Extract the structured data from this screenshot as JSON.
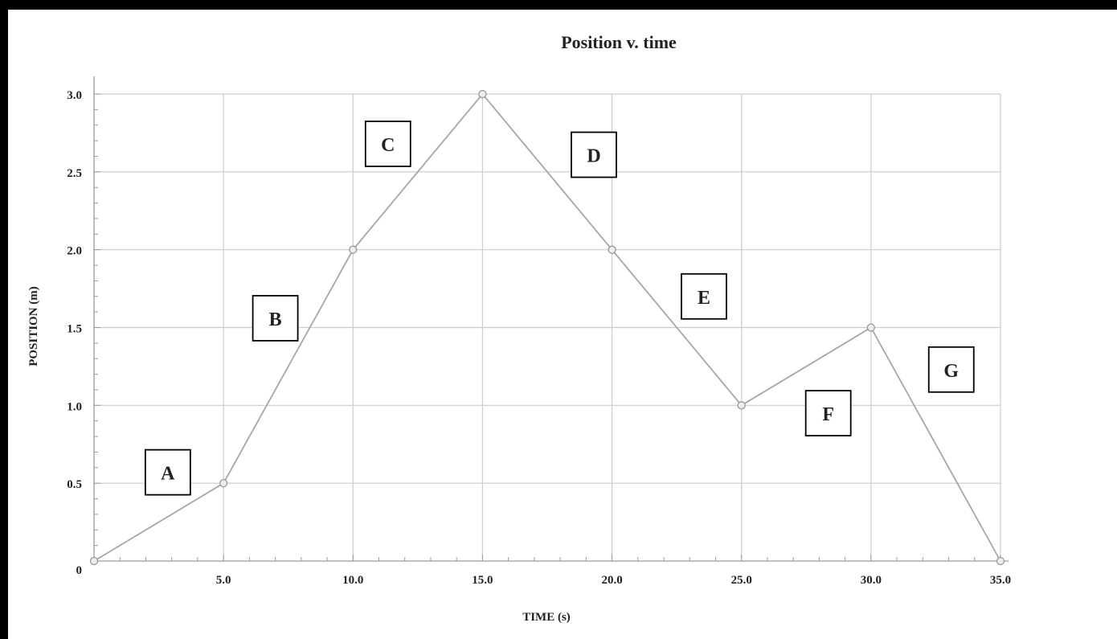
{
  "chart_data": {
    "type": "line",
    "title": "Position v. time",
    "xlabel": "TIME (s)",
    "ylabel": "POSITION (m)",
    "xlim": [
      0,
      35
    ],
    "ylim": [
      0,
      3
    ],
    "x_ticks": [
      5,
      10,
      15,
      20,
      25,
      30,
      35
    ],
    "x_tick_labels": [
      "5.0",
      "10.0",
      "15.0",
      "20.0",
      "25.0",
      "30.0",
      "35.0"
    ],
    "y_ticks": [
      0,
      0.5,
      1,
      1.5,
      2,
      2.5,
      3
    ],
    "y_tick_labels": [
      "0",
      "0.5",
      "1.0",
      "1.5",
      "2.0",
      "2.5",
      "3.0"
    ],
    "grid": true,
    "series": [
      {
        "x": [
          0,
          5,
          10,
          15,
          20,
          25,
          30,
          35
        ],
        "y": [
          0,
          0.5,
          2,
          3,
          2,
          1,
          1.5,
          0
        ]
      }
    ],
    "segment_labels": [
      {
        "text": "A",
        "x": 2.85,
        "y": 0.57
      },
      {
        "text": "B",
        "x": 7.0,
        "y": 1.56
      },
      {
        "text": "C",
        "x": 11.35,
        "y": 2.68
      },
      {
        "text": "D",
        "x": 19.3,
        "y": 2.61
      },
      {
        "text": "E",
        "x": 23.55,
        "y": 1.7
      },
      {
        "text": "F",
        "x": 28.35,
        "y": 0.95
      },
      {
        "text": "G",
        "x": 33.1,
        "y": 1.23
      }
    ],
    "colors": {
      "line": "#a6a6a6",
      "marker_fill": "#eeeeee",
      "marker_stroke": "#999999",
      "grid": "#cccccc",
      "axis": "#9a9a9a",
      "label_box": "#000000"
    }
  }
}
